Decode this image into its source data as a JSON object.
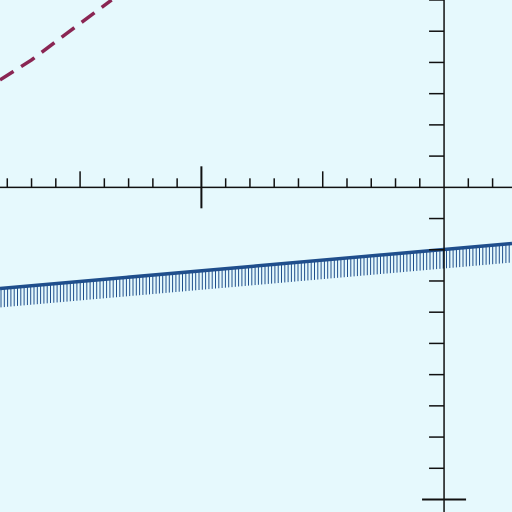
{
  "background": "#e6f9fd",
  "axis_color": "#111111",
  "chart_data": {
    "type": "line",
    "title": "",
    "xlabel": "",
    "ylabel": "",
    "xlim": [
      -18.3,
      2.8
    ],
    "ylim": [
      -13.0,
      7.5
    ],
    "grid": false,
    "x_axis": {
      "minor_step": 1,
      "major_step": 10
    },
    "y_axis": {
      "minor_step": 1.25,
      "major_step": 12.5
    },
    "series": [
      {
        "kind": "dashed-curve",
        "color": "#8a2653",
        "x": [
          -18.3,
          -17.0,
          -15.5,
          -13.7
        ],
        "y": [
          4.3,
          5.1,
          6.2,
          7.5
        ]
      },
      {
        "kind": "hatched-line",
        "color": "#1f4e8c",
        "x": [
          -18.3,
          2.8
        ],
        "y": [
          -4.05,
          -2.25
        ]
      }
    ]
  }
}
